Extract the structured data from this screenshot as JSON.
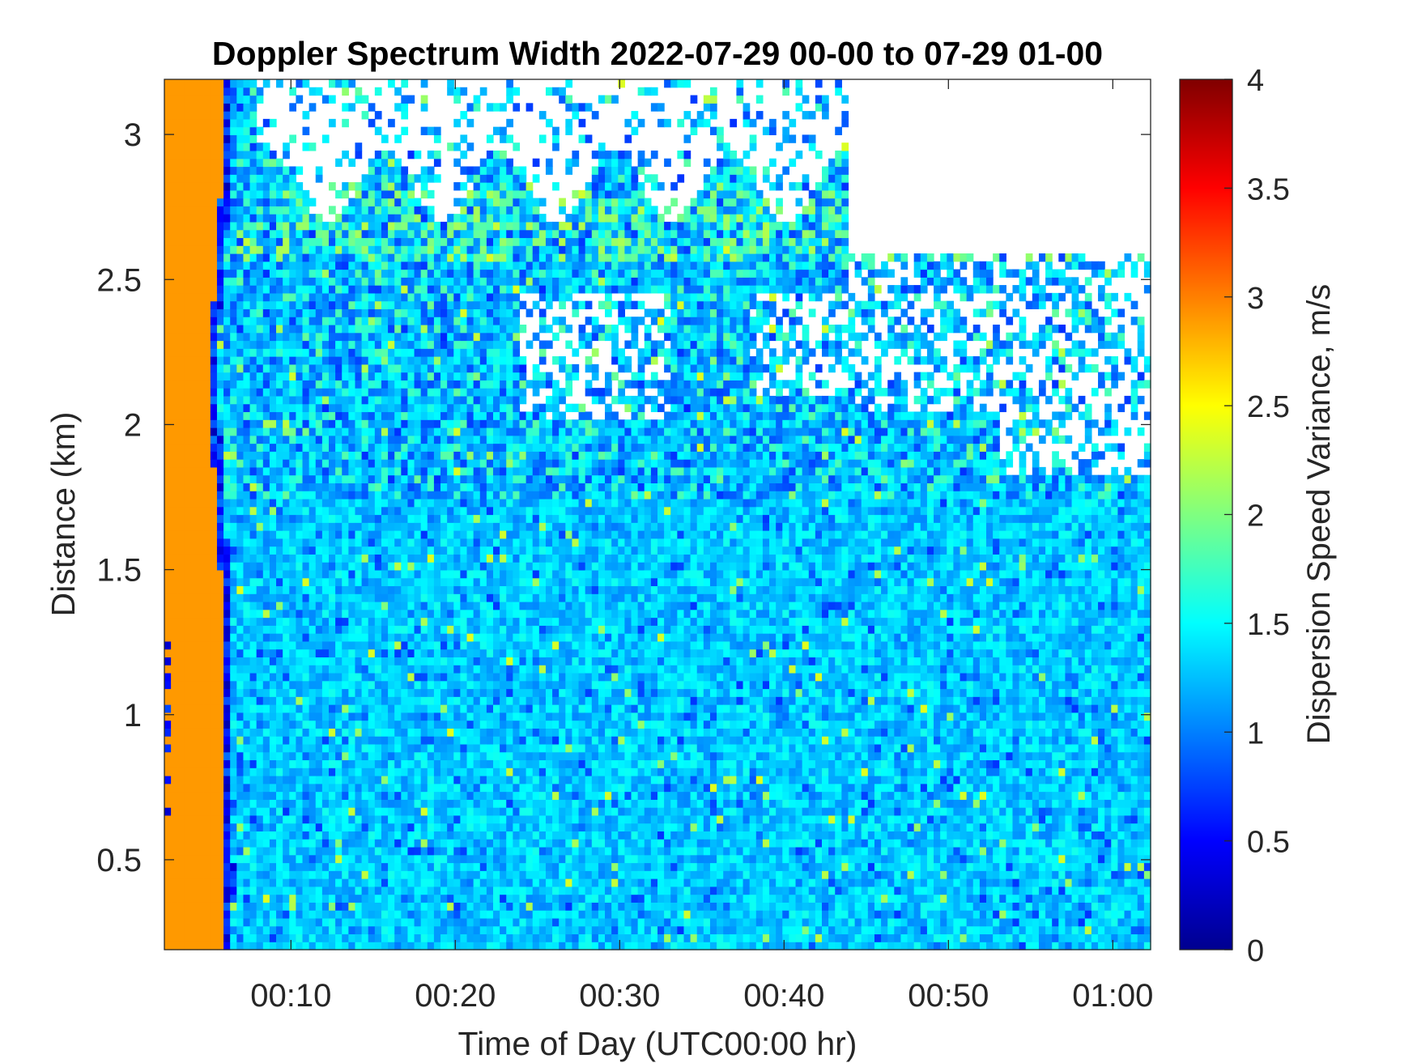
{
  "chart_data": {
    "type": "heatmap",
    "title": "Doppler Spectrum Width 2022-07-29 00-00 to 07-29 01-00",
    "xlabel": "Time of Day (UTC00:00 hr)",
    "ylabel": "Distance (km)",
    "colorbar_label": "Dispersion Speed Variance, m/s",
    "xlim_minutes": [
      2.3,
      62.3
    ],
    "ylim_km": [
      0.19,
      3.19
    ],
    "clim": [
      0,
      4
    ],
    "colormap": "jet",
    "x_ticks": [
      {
        "value": 10,
        "label": "00:10"
      },
      {
        "value": 20,
        "label": "00:20"
      },
      {
        "value": 30,
        "label": "00:30"
      },
      {
        "value": 40,
        "label": "00:40"
      },
      {
        "value": 50,
        "label": "00:50"
      },
      {
        "value": 60,
        "label": "01:00"
      }
    ],
    "y_ticks": [
      {
        "value": 0.5,
        "label": "0.5"
      },
      {
        "value": 1,
        "label": "1"
      },
      {
        "value": 1.5,
        "label": "1.5"
      },
      {
        "value": 2,
        "label": "2"
      },
      {
        "value": 2.5,
        "label": "2.5"
      },
      {
        "value": 3,
        "label": "3"
      }
    ],
    "colorbar_ticks": [
      {
        "value": 0,
        "label": "0"
      },
      {
        "value": 0.5,
        "label": "0.5"
      },
      {
        "value": 1,
        "label": "1"
      },
      {
        "value": 1.5,
        "label": "1.5"
      },
      {
        "value": 2,
        "label": "2"
      },
      {
        "value": 2.5,
        "label": "2.5"
      },
      {
        "value": 3,
        "label": "3"
      },
      {
        "value": 3.5,
        "label": "3.5"
      },
      {
        "value": 4,
        "label": "4"
      }
    ],
    "regions": [
      {
        "description": "saturated near-instrument band",
        "x_range": [
          2.3,
          5.8
        ],
        "y_range": [
          0.19,
          3.19
        ],
        "value": 2.9
      },
      {
        "description": "dominant field below ~1.8 km",
        "x_range": [
          5.8,
          62.3
        ],
        "y_range": [
          0.19,
          1.8
        ],
        "value_range": [
          0.8,
          1.6
        ],
        "typical": 1.3
      },
      {
        "description": "noisy transition layer",
        "x_range": [
          5.8,
          62.3
        ],
        "y_range": [
          1.8,
          2.4
        ],
        "value_range": [
          0.6,
          2.3
        ]
      },
      {
        "description": "aerosol layer top near 2.6-2.8 km",
        "x_range": [
          8,
          44
        ],
        "y_range": [
          2.5,
          2.85
        ],
        "value_range": [
          1.3,
          2.1
        ]
      },
      {
        "description": "no data above ~2.6 km",
        "x_range": [
          44,
          62.3
        ],
        "y_range": [
          2.6,
          3.19
        ],
        "value": null
      },
      {
        "description": "no data 2.0-2.6 km after 00:55",
        "x_range": [
          55,
          62.3
        ],
        "y_range": [
          1.8,
          2.6
        ],
        "value": null
      }
    ]
  }
}
